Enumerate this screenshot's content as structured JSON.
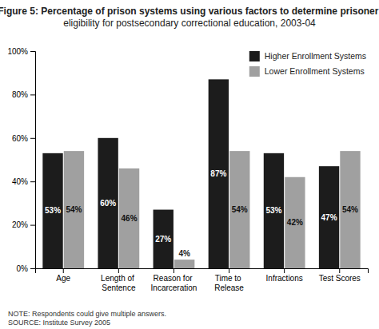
{
  "chart_data": {
    "type": "bar",
    "title": "Figure 5: Percentage of prison systems using various factors to determine prisoner eligibility for postsecondary correctional education, 2003-04",
    "categories": [
      "Age",
      "Length of\nSentence",
      "Reason for\nIncarceration",
      "Time to\nRelease",
      "Infractions",
      "Test Scores"
    ],
    "series": [
      {
        "name": "Higher Enrollment Systems",
        "color": "#1c1c1c",
        "values": [
          53,
          60,
          27,
          87,
          53,
          47
        ],
        "value_labels": [
          "53%",
          "60%",
          "27%",
          "87%",
          "53%",
          "47%"
        ]
      },
      {
        "name": "Lower Enrollment Systems",
        "color": "#a0a0a0",
        "values": [
          54,
          46,
          4,
          54,
          42,
          54
        ],
        "value_labels": [
          "54%",
          "46%",
          "4%",
          "54%",
          "42%",
          "54%"
        ]
      }
    ],
    "ylim": [
      0,
      100
    ],
    "yticks": [
      {
        "value": 0,
        "label": "0%"
      },
      {
        "value": 20,
        "label": "20%"
      },
      {
        "value": 40,
        "label": "40%"
      },
      {
        "value": 60,
        "label": "60%"
      },
      {
        "value": 80,
        "label": "80%"
      },
      {
        "value": 100,
        "label": "100%"
      }
    ],
    "data_labels": true,
    "grid": false,
    "legend": "upper right",
    "annotations": [
      "NOTE: Respondents could give multiple answers.",
      "SOURCE: Institute Survey 2005"
    ]
  }
}
